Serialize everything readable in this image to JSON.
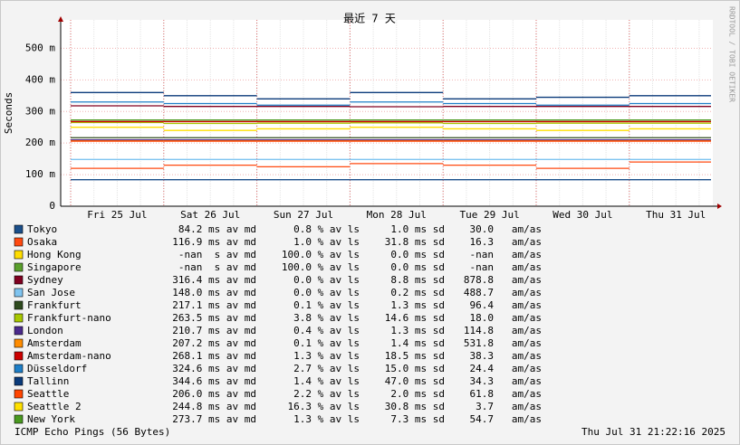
{
  "chart_data": {
    "type": "line",
    "title": "最近 7 天",
    "y_label": "Seconds",
    "side_label": "RRDTOOL / TOBI OETIKER",
    "footer_left": "ICMP Echo Pings (56 Bytes)",
    "footer_right": "Thu Jul 31 21:22:16 2025",
    "categories": [
      "Fri 25 Jul",
      "Sat 26 Jul",
      "Sun 27 Jul",
      "Mon 28 Jul",
      "Tue 29 Jul",
      "Wed 30 Jul",
      "Thu 31 Jul"
    ],
    "ylim": [
      0,
      590
    ],
    "yticks": [
      {
        "value": 0,
        "label": "0"
      },
      {
        "value": 100,
        "label": "100 m"
      },
      {
        "value": 200,
        "label": "200 m"
      },
      {
        "value": 300,
        "label": "300 m"
      },
      {
        "value": 400,
        "label": "400 m"
      },
      {
        "value": 500,
        "label": "500 m"
      }
    ],
    "grid": true,
    "series": [
      {
        "name": "Tokyo",
        "color": "#1b4f8a",
        "values": [
          84,
          84,
          84,
          84,
          84,
          84,
          84
        ],
        "stats": [
          "84.2 ms av md",
          "0.8 % av ls",
          "1.0 ms sd",
          "30.0   am/as"
        ]
      },
      {
        "name": "Osaka",
        "color": "#ff4a10",
        "values": [
          120,
          130,
          125,
          135,
          130,
          120,
          140
        ],
        "stats": [
          "116.9 ms av md",
          "1.0 % av ls",
          "31.8 ms sd",
          "16.3   am/as"
        ]
      },
      {
        "name": "Hong Kong",
        "color": "#ffdd00",
        "values": [
          null,
          null,
          null,
          null,
          null,
          null,
          null
        ],
        "stats": [
          "-nan  s av md",
          "100.0 % av ls",
          "0.0 ms sd",
          "-nan   am/as"
        ]
      },
      {
        "name": "Singapore",
        "color": "#5aa02c",
        "values": [
          null,
          null,
          null,
          null,
          null,
          null,
          null
        ],
        "stats": [
          "-nan  s av md",
          "100.0 % av ls",
          "0.0 ms sd",
          "-nan   am/as"
        ]
      },
      {
        "name": "Sydney",
        "color": "#800020",
        "values": [
          318,
          316,
          316,
          315,
          316,
          316,
          316
        ],
        "stats": [
          "316.4 ms av md",
          "0.0 % av ls",
          "8.8 ms sd",
          "878.8   am/as"
        ]
      },
      {
        "name": "San Jose",
        "color": "#7fc4f0",
        "values": [
          148,
          148,
          148,
          148,
          148,
          148,
          148
        ],
        "stats": [
          "148.0 ms av md",
          "0.0 % av ls",
          "0.2 ms sd",
          "488.7   am/as"
        ]
      },
      {
        "name": "Frankfurt",
        "color": "#2e4a1e",
        "values": [
          217,
          217,
          217,
          217,
          217,
          217,
          217
        ],
        "stats": [
          "217.1 ms av md",
          "0.1 % av ls",
          "1.3 ms sd",
          "96.4   am/as"
        ]
      },
      {
        "name": "Frankfurt-nano",
        "color": "#a8c800",
        "values": [
          265,
          262,
          263,
          264,
          262,
          263,
          263
        ],
        "stats": [
          "263.5 ms av md",
          "3.8 % av ls",
          "14.6 ms sd",
          "18.0   am/as"
        ]
      },
      {
        "name": "London",
        "color": "#4b2a8c",
        "values": [
          210,
          210,
          210,
          210,
          210,
          210,
          210
        ],
        "stats": [
          "210.7 ms av md",
          "0.4 % av ls",
          "1.3 ms sd",
          "114.8   am/as"
        ]
      },
      {
        "name": "Amsterdam",
        "color": "#ff8c00",
        "values": [
          207,
          207,
          207,
          207,
          207,
          207,
          207
        ],
        "stats": [
          "207.2 ms av md",
          "0.1 % av ls",
          "1.4 ms sd",
          "531.8   am/as"
        ]
      },
      {
        "name": "Amsterdam-nano",
        "color": "#cc0000",
        "values": [
          268,
          268,
          268,
          268,
          268,
          268,
          268
        ],
        "stats": [
          "268.1 ms av md",
          "1.3 % av ls",
          "18.5 ms sd",
          "38.3   am/as"
        ]
      },
      {
        "name": "Düsseldorf",
        "color": "#1e7fc8",
        "values": [
          330,
          325,
          320,
          330,
          325,
          320,
          325
        ],
        "stats": [
          "324.6 ms av md",
          "2.7 % av ls",
          "15.0 ms sd",
          "24.4   am/as"
        ]
      },
      {
        "name": "Tallinn",
        "color": "#0a3a7a",
        "values": [
          360,
          350,
          340,
          360,
          340,
          345,
          350
        ],
        "stats": [
          "344.6 ms av md",
          "1.4 % av ls",
          "47.0 ms sd",
          "34.3   am/as"
        ]
      },
      {
        "name": "Seattle",
        "color": "#ff4500",
        "values": [
          206,
          206,
          206,
          206,
          206,
          206,
          206
        ],
        "stats": [
          "206.0 ms av md",
          "2.2 % av ls",
          "2.0 ms sd",
          "61.8   am/as"
        ]
      },
      {
        "name": "Seattle 2",
        "color": "#ffe000",
        "values": [
          250,
          240,
          245,
          250,
          245,
          240,
          245
        ],
        "stats": [
          "244.8 ms av md",
          "16.3 % av ls",
          "30.8 ms sd",
          "3.7   am/as"
        ]
      },
      {
        "name": "New York",
        "color": "#4a9a20",
        "values": [
          273,
          273,
          273,
          273,
          273,
          273,
          273
        ],
        "stats": [
          "273.7 ms av md",
          "1.3 % av ls",
          "7.3 ms sd",
          "54.7   am/as"
        ]
      }
    ]
  }
}
